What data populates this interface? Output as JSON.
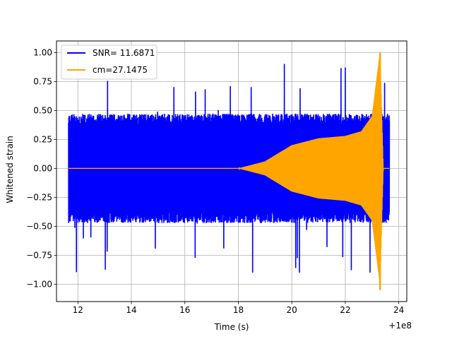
{
  "chart_data": {
    "type": "line",
    "xlabel": "Time (s)",
    "ylabel": "Whitened strain",
    "x_offset_label": "+1e8",
    "xlim": [
      11.2,
      24.3
    ],
    "ylim": [
      -1.15,
      1.1
    ],
    "grid": true,
    "legend_position": "top-left",
    "x_ticks": [
      12,
      14,
      16,
      18,
      20,
      22,
      24
    ],
    "x_tick_labels": [
      "12",
      "14",
      "16",
      "18",
      "20",
      "22",
      "24"
    ],
    "y_ticks": [
      1.0,
      0.75,
      0.5,
      0.25,
      0.0,
      -0.25,
      -0.5,
      -0.75,
      -1.0
    ],
    "y_tick_labels": [
      "1.00",
      "0.75",
      "0.50",
      "0.25",
      "0.00",
      "−0.25",
      "−0.50",
      "−0.75",
      "−1.00"
    ],
    "series": [
      {
        "name": "SNR= 11.6871",
        "color": "#0000ff",
        "kind": "noise",
        "x_range": [
          11.65,
          23.65
        ],
        "typical_amplitude": 0.45,
        "max": 1.0,
        "min": -0.9
      },
      {
        "name": "cm=27.1475",
        "color": "#ffa500",
        "kind": "chirp",
        "x_range": [
          11.65,
          23.65
        ],
        "envelope": [
          {
            "x": 11.65,
            "a": 0.0
          },
          {
            "x": 18.0,
            "a": 0.0
          },
          {
            "x": 19.0,
            "a": 0.06
          },
          {
            "x": 20.0,
            "a": 0.2
          },
          {
            "x": 21.0,
            "a": 0.26
          },
          {
            "x": 22.0,
            "a": 0.28
          },
          {
            "x": 22.6,
            "a": 0.32
          },
          {
            "x": 23.0,
            "a": 0.45
          },
          {
            "x": 23.3,
            "a": 1.0
          },
          {
            "x": 23.42,
            "a": 0.0
          },
          {
            "x": 23.65,
            "a": 0.0
          }
        ],
        "peak": {
          "x": 23.3,
          "max": 1.0,
          "min": -1.05
        }
      }
    ]
  }
}
